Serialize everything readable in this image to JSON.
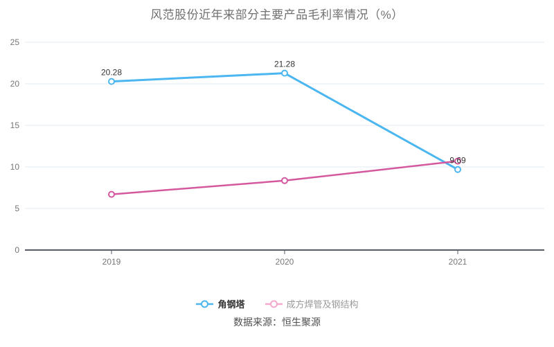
{
  "page": {
    "title": "风范股份近年来部分主要产品毛利率情况（%）",
    "source": "数据来源：恒生聚源"
  },
  "colors": {
    "grid": "#e3e8f3",
    "axis": "#565b64",
    "tick_label": "#767676",
    "data_label": "#333333",
    "background": "#ffffff"
  },
  "chart_data": {
    "type": "line",
    "title": "风范股份近年来部分主要产品毛利率情况（%）",
    "categories": [
      "2019",
      "2020",
      "2021"
    ],
    "series": [
      {
        "name": "角钢塔",
        "color": "#4bb6f0",
        "legend_icon_color": "#4bb6f0",
        "legend_text_style": "emphasis",
        "values": [
          20.28,
          21.28,
          9.69
        ],
        "point_labels": [
          "20.28",
          "21.28",
          "9.69"
        ],
        "line_width": 3
      },
      {
        "name": "成方焊管及钢结构",
        "color": "#d4589e",
        "legend_icon_color": "#f3a8cc",
        "legend_text_style": "muted",
        "values": [
          6.7,
          8.35,
          10.7
        ],
        "point_labels": [
          "",
          "",
          ""
        ],
        "line_width": 2.5
      }
    ],
    "ylim": [
      0,
      25
    ],
    "yticks": [
      0,
      5,
      10,
      15,
      20,
      25
    ],
    "grid": true,
    "legend_position": "bottom",
    "xlabel": "",
    "ylabel": "",
    "source_note": "数据来源：恒生聚源"
  }
}
